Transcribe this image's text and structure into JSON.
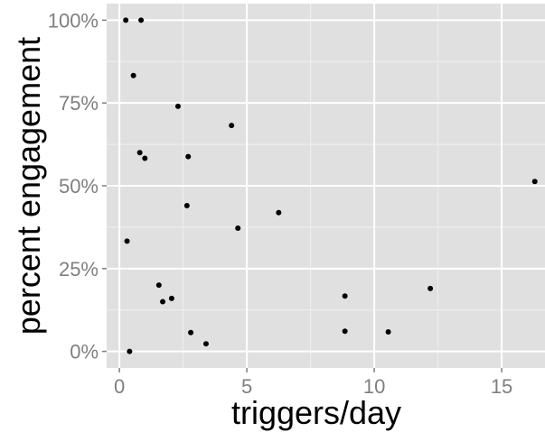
{
  "chart_data": {
    "type": "scatter",
    "xlabel": "triggers/day",
    "ylabel": "percent engagement",
    "xlim": [
      -0.5,
      16.7
    ],
    "ylim": [
      -0.05,
      1.05
    ],
    "x_major_ticks": [
      0,
      5,
      10,
      15
    ],
    "x_major_tick_labels": [
      "0",
      "5",
      "10",
      "15"
    ],
    "x_minor_ticks": [
      2.5,
      7.5,
      12.5
    ],
    "y_major_ticks": [
      0,
      0.25,
      0.5,
      0.75,
      1.0
    ],
    "y_major_tick_labels": [
      "0%",
      "25%",
      "50%",
      "75%",
      "100%"
    ],
    "y_minor_ticks": [
      0.125,
      0.375,
      0.625,
      0.875
    ],
    "grid": true,
    "colors": {
      "panel": "#e0e0e0",
      "major_grid": "#ffffff",
      "minor_grid": "#efefef",
      "point": "#000000",
      "tick_label": "#7f7f7f",
      "tick_mark": "#7f7f7f"
    },
    "series": [
      {
        "points": [
          {
            "x": 0.25,
            "y": 1.0
          },
          {
            "x": 0.85,
            "y": 1.0
          },
          {
            "x": 0.55,
            "y": 0.833
          },
          {
            "x": 2.3,
            "y": 0.74
          },
          {
            "x": 4.4,
            "y": 0.682
          },
          {
            "x": 0.8,
            "y": 0.6
          },
          {
            "x": 1.0,
            "y": 0.583
          },
          {
            "x": 2.7,
            "y": 0.588
          },
          {
            "x": 16.3,
            "y": 0.513
          },
          {
            "x": 2.65,
            "y": 0.44
          },
          {
            "x": 6.25,
            "y": 0.419
          },
          {
            "x": 4.65,
            "y": 0.372
          },
          {
            "x": 0.3,
            "y": 0.333
          },
          {
            "x": 1.55,
            "y": 0.2
          },
          {
            "x": 2.05,
            "y": 0.16
          },
          {
            "x": 1.7,
            "y": 0.15
          },
          {
            "x": 12.2,
            "y": 0.19
          },
          {
            "x": 8.85,
            "y": 0.167
          },
          {
            "x": 2.8,
            "y": 0.057
          },
          {
            "x": 8.85,
            "y": 0.061
          },
          {
            "x": 10.55,
            "y": 0.059
          },
          {
            "x": 3.4,
            "y": 0.023
          },
          {
            "x": 0.4,
            "y": 0.0
          }
        ]
      }
    ]
  }
}
